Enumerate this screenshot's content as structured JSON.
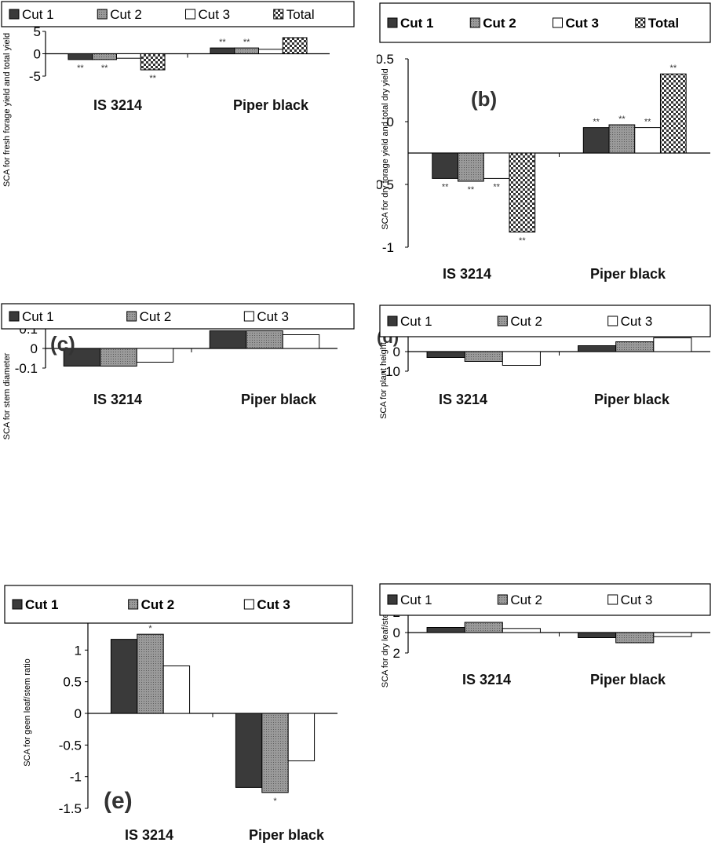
{
  "chart_data": [
    {
      "type": "bar",
      "panel_label": "",
      "ylabel": "SCA for fresh forage yield and total yield",
      "ylim": [
        -5,
        5
      ],
      "yticks": [
        "5",
        "0",
        "-5"
      ],
      "categories": [
        "IS 3214",
        "Piper black"
      ],
      "series": [
        {
          "name": "Cut 1",
          "values": [
            -1.3,
            1.3
          ]
        },
        {
          "name": "Cut 2",
          "values": [
            -1.3,
            1.3
          ]
        },
        {
          "name": "Cut 3",
          "values": [
            -1.0,
            1.0
          ]
        },
        {
          "name": "Total",
          "values": [
            -3.6,
            3.6
          ]
        }
      ],
      "annotations": [
        [
          "**",
          "**",
          "",
          "**"
        ],
        [
          "**",
          "**",
          "",
          ""
        ]
      ],
      "legend": "top"
    },
    {
      "type": "bar",
      "panel_label": "(b)",
      "ylabel": "SCA for dry forage yield and total dry yield",
      "ylim": [
        -1,
        1
      ],
      "yticks": [
        "0.5",
        "0",
        "-0.5",
        "-1"
      ],
      "categories": [
        "IS 3214",
        "Piper black"
      ],
      "series": [
        {
          "name": "Cut 1",
          "values": [
            -0.27,
            0.27
          ]
        },
        {
          "name": "Cut 2",
          "values": [
            -0.3,
            0.3
          ]
        },
        {
          "name": "Cut 3",
          "values": [
            -0.27,
            0.27
          ]
        },
        {
          "name": "Total",
          "values": [
            -0.84,
            0.84
          ]
        }
      ],
      "annotations": [
        [
          "**",
          "**",
          "**",
          "**"
        ],
        [
          "**",
          "**",
          "**",
          "**"
        ]
      ],
      "legend": "top"
    },
    {
      "type": "bar",
      "panel_label": "(c)",
      "ylabel": "SCA for stem diameter",
      "ylim": [
        -0.1,
        0.1
      ],
      "yticks": [
        "0.1",
        "0",
        "-0.1"
      ],
      "categories": [
        "IS 3214",
        "Piper black"
      ],
      "series": [
        {
          "name": "Cut 1",
          "values": [
            -0.09,
            0.09
          ]
        },
        {
          "name": "Cut 2",
          "values": [
            -0.09,
            0.09
          ]
        },
        {
          "name": "Cut 3",
          "values": [
            -0.07,
            0.07
          ]
        }
      ],
      "annotations": [],
      "legend": "top"
    },
    {
      "type": "bar",
      "panel_label": "(d)",
      "ylabel": "SCA for plant height",
      "ylim": [
        -10,
        10
      ],
      "yticks": [
        "10",
        "0",
        "-10"
      ],
      "categories": [
        "IS 3214",
        "Piper black"
      ],
      "series": [
        {
          "name": "Cut 1",
          "values": [
            -3,
            3
          ]
        },
        {
          "name": "Cut 2",
          "values": [
            -5,
            5
          ]
        },
        {
          "name": "Cut 3",
          "values": [
            -7,
            7
          ]
        }
      ],
      "annotations": [],
      "legend": "top"
    },
    {
      "type": "bar",
      "panel_label": "(e)",
      "ylabel": "SCA for geen leaf/stem ratio",
      "ylim": [
        -1.5,
        1.5
      ],
      "yticks": [
        "1.5",
        "1",
        "0.5",
        "0",
        "-0.5",
        "-1",
        "-1.5"
      ],
      "categories": [
        "IS 3214",
        "Piper black"
      ],
      "series": [
        {
          "name": "Cut 1",
          "values": [
            1.17,
            -1.17
          ]
        },
        {
          "name": "Cut 2",
          "values": [
            1.25,
            -1.25
          ]
        },
        {
          "name": "Cut 3",
          "values": [
            0.75,
            -0.75
          ]
        }
      ],
      "annotations": [
        [
          "",
          "*",
          ""
        ],
        [
          "",
          "*",
          ""
        ]
      ],
      "legend": "top"
    },
    {
      "type": "bar",
      "panel_label": "",
      "ylabel": "SCA for dry leaf/stem ratio",
      "ylim": [
        -2,
        2
      ],
      "yticks": [
        "2",
        "0",
        "2"
      ],
      "categories": [
        "IS 3214",
        "Piper black"
      ],
      "series": [
        {
          "name": "Cut 1",
          "values": [
            0.5,
            -0.5
          ]
        },
        {
          "name": "Cut 2",
          "values": [
            1.0,
            -1.0
          ]
        },
        {
          "name": "Cut 3",
          "values": [
            0.4,
            -0.4
          ]
        }
      ],
      "annotations": [],
      "legend": "top"
    }
  ],
  "styles": {
    "Cut 1": {
      "fill": "#3a3a3a",
      "pattern": "solid"
    },
    "Cut 2": {
      "fill": "#8a8a8a",
      "pattern": "dots"
    },
    "Cut 3": {
      "fill": "#ffffff",
      "pattern": "solid"
    },
    "Total": {
      "fill": "#ffffff",
      "pattern": "checker"
    }
  }
}
